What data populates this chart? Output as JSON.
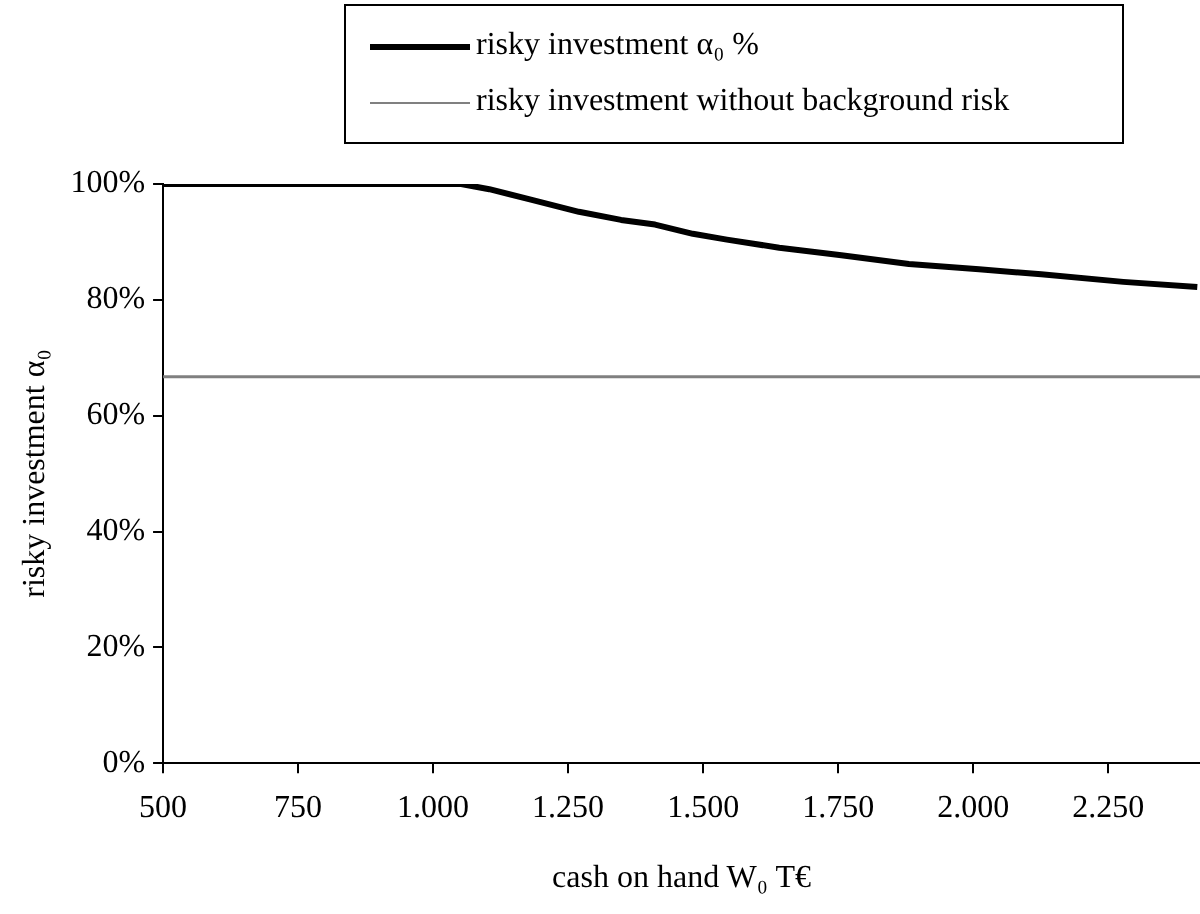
{
  "chart_data": {
    "type": "line",
    "xlabel": "cash on hand W₀ T€",
    "ylabel": "risky investment α₀",
    "series": [
      {
        "name": "risky investment α₀ %",
        "color": "#000000",
        "x": [
          500,
          1052,
          1104,
          1181,
          1270,
          1348,
          1411,
          1481,
          1544,
          1641,
          1756,
          1881,
          2011,
          2126,
          2278,
          2415
        ],
        "values": [
          100,
          100,
          99.1,
          97.3,
          95.2,
          93.8,
          93.0,
          91.4,
          90.4,
          89.0,
          87.7,
          86.2,
          85.3,
          84.4,
          83.1,
          82.2
        ]
      },
      {
        "name": "risky investment without background risk",
        "color": "#808080",
        "x": [
          500,
          2420
        ],
        "values": [
          66.7,
          66.7
        ]
      }
    ],
    "xlim": [
      500,
      2420
    ],
    "xticks": [
      500,
      750,
      {
        "value": 1000,
        "label": "1.000"
      },
      {
        "value": 1250,
        "label": "1.250"
      },
      {
        "value": 1500,
        "label": "1.500"
      },
      {
        "value": 1750,
        "label": "1.750"
      },
      {
        "value": 2000,
        "label": "2.000"
      },
      {
        "value": 2250,
        "label": "2.250"
      }
    ],
    "ylim": [
      0,
      100
    ],
    "yticks": [
      {
        "value": 0,
        "label": "0%"
      },
      {
        "value": 20,
        "label": "20%"
      },
      {
        "value": 40,
        "label": "40%"
      },
      {
        "value": 60,
        "label": "60%"
      },
      {
        "value": 80,
        "label": "80%"
      },
      {
        "value": 100,
        "label": "100%"
      }
    ],
    "grid": false,
    "legend": "top",
    "marker": "none",
    "line_style": "solid"
  }
}
